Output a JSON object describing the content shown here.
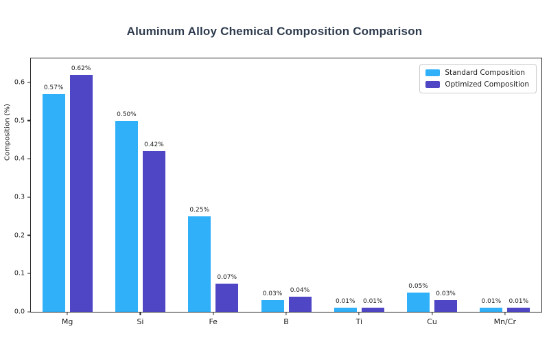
{
  "title": "Aluminum Alloy Chemical Composition Comparison",
  "colors": {
    "standard": "#2FB0F9",
    "optimized": "#4E46C5",
    "axis": "#262626",
    "title_text": "#2e3b4e"
  },
  "chart_data": {
    "type": "bar",
    "title": "Aluminum Alloy Chemical Composition Comparison",
    "categories": [
      "Mg",
      "Si",
      "Fe",
      "B",
      "Ti",
      "Cu",
      "Mn/Cr"
    ],
    "series": [
      {
        "name": "Standard Composition",
        "color": "#2FB0F9",
        "values": [
          0.57,
          0.5,
          0.25,
          0.03,
          0.01,
          0.05,
          0.01
        ],
        "labels": [
          "0.57%",
          "0.50%",
          "0.25%",
          "0.03%",
          "0.01%",
          "0.05%",
          "0.01%"
        ]
      },
      {
        "name": "Optimized Composition",
        "color": "#4E46C5",
        "values": [
          0.62,
          0.42,
          0.073,
          0.04,
          0.01,
          0.03,
          0.01
        ],
        "labels": [
          "0.62%",
          "0.42%",
          "0.07%",
          "0.04%",
          "0.01%",
          "0.03%",
          "0.01%"
        ]
      }
    ],
    "xlabel": "",
    "ylabel": "Composition (%)",
    "yticks": [
      0.0,
      0.1,
      0.2,
      0.3,
      0.4,
      0.5,
      0.6
    ],
    "ytick_labels": [
      "0.0",
      "0.1",
      "0.2",
      "0.3",
      "0.4",
      "0.5",
      "0.6"
    ],
    "ylim": [
      0,
      0.6625
    ],
    "legend_position": "upper right",
    "grid": false
  }
}
